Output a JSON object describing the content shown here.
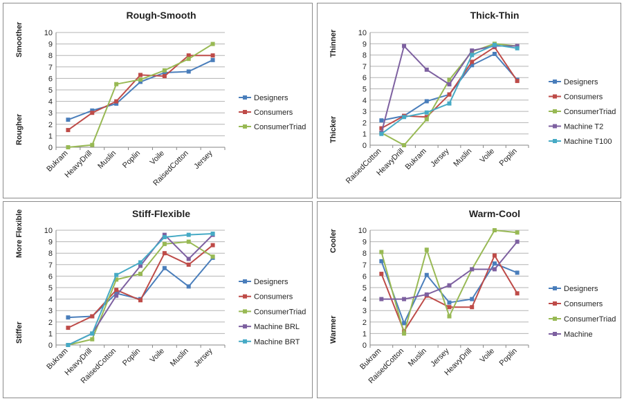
{
  "chart_data": [
    {
      "type": "line",
      "title": "Rough-Smooth",
      "ylim": [
        0,
        10
      ],
      "yticks": [
        "0",
        "1",
        "2",
        "3",
        "4",
        "5",
        "6",
        "7",
        "8",
        "9",
        "10"
      ],
      "ylabel_top": "Smoother",
      "ylabel_bottom": "Rougher",
      "grid": true,
      "legend_position": "right",
      "categories": [
        "Bukram",
        "HeavyDrill",
        "Muslin",
        "Poplin",
        "Voile",
        "RaisedCotton",
        "Jersey"
      ],
      "series": [
        {
          "name": "Designers",
          "color": "#4a7ebb",
          "values": [
            2.4,
            3.2,
            3.8,
            5.7,
            6.5,
            6.6,
            7.6
          ]
        },
        {
          "name": "Consumers",
          "color": "#be4b48",
          "values": [
            1.5,
            3.0,
            4.0,
            6.3,
            6.2,
            8.0,
            8.0
          ]
        },
        {
          "name": "ConsumerTriad",
          "color": "#98b954",
          "values": [
            0.0,
            0.2,
            5.5,
            5.9,
            6.7,
            7.7,
            9.0
          ]
        }
      ]
    },
    {
      "type": "line",
      "title": "Thick-Thin",
      "ylim": [
        0,
        10
      ],
      "yticks": [
        "0",
        "1",
        "2",
        "3",
        "4",
        "5",
        "6",
        "7",
        "8",
        "9",
        "10"
      ],
      "ylabel_top": "Thinner",
      "ylabel_bottom": "Thicker",
      "grid": true,
      "legend_position": "right",
      "categories": [
        "RaisedCotton",
        "HeavyDrill",
        "Bukram",
        "Jersey",
        "Muslin",
        "Voile",
        "Poplin"
      ],
      "series": [
        {
          "name": "Designers",
          "color": "#4a7ebb",
          "values": [
            2.2,
            2.6,
            3.9,
            4.5,
            7.1,
            8.1,
            5.8
          ]
        },
        {
          "name": "Consumers",
          "color": "#be4b48",
          "values": [
            1.5,
            2.6,
            2.5,
            4.5,
            7.4,
            8.7,
            5.7
          ]
        },
        {
          "name": "ConsumerTriad",
          "color": "#98b954",
          "values": [
            1.1,
            0.0,
            2.3,
            5.8,
            8.3,
            9.0,
            8.8
          ]
        },
        {
          "name": "Machine T2",
          "color": "#7d60a0",
          "values": [
            1.1,
            8.8,
            6.7,
            5.4,
            8.4,
            8.8,
            8.8
          ]
        },
        {
          "name": "Machine T100",
          "color": "#46aac5",
          "values": [
            1.0,
            2.5,
            2.9,
            3.7,
            8.0,
            8.9,
            8.6
          ]
        }
      ]
    },
    {
      "type": "line",
      "title": "Stiff-Flexible",
      "ylim": [
        0,
        10
      ],
      "yticks": [
        "0",
        "1",
        "2",
        "3",
        "4",
        "5",
        "6",
        "7",
        "8",
        "9",
        "10"
      ],
      "ylabel_top": "More Flexible",
      "ylabel_bottom": "Stiffer",
      "grid": true,
      "legend_position": "right",
      "categories": [
        "Bukram",
        "HeavyDrill",
        "RaisedCotton",
        "Poplin",
        "Voile",
        "Muslin",
        "Jersey"
      ],
      "series": [
        {
          "name": "Designers",
          "color": "#4a7ebb",
          "values": [
            2.4,
            2.5,
            4.5,
            4.0,
            6.7,
            5.1,
            7.6
          ]
        },
        {
          "name": "Consumers",
          "color": "#be4b48",
          "values": [
            1.5,
            2.5,
            4.8,
            3.9,
            8.0,
            7.0,
            8.7
          ]
        },
        {
          "name": "ConsumerTriad",
          "color": "#98b954",
          "values": [
            0.0,
            0.5,
            5.7,
            6.2,
            8.8,
            9.0,
            7.7
          ]
        },
        {
          "name": "Machine BRL",
          "color": "#7d60a0",
          "values": [
            0.0,
            1.0,
            4.3,
            6.9,
            9.6,
            7.5,
            9.6
          ]
        },
        {
          "name": "Machine BRT",
          "color": "#46aac5",
          "values": [
            0.0,
            1.0,
            6.1,
            7.2,
            9.4,
            9.6,
            9.7
          ]
        }
      ]
    },
    {
      "type": "line",
      "title": "Warm-Cool",
      "ylim": [
        0,
        10
      ],
      "yticks": [
        "0",
        "1",
        "2",
        "3",
        "4",
        "5",
        "6",
        "7",
        "8",
        "9",
        "10"
      ],
      "ylabel_top": "Cooler",
      "ylabel_bottom": "Warmer",
      "grid": true,
      "legend_position": "right",
      "categories": [
        "Bukram",
        "RaisedCotton",
        "Muslin",
        "Jersey",
        "HeavyDrill",
        "Voile",
        "Poplin"
      ],
      "series": [
        {
          "name": "Designers",
          "color": "#4a7ebb",
          "values": [
            7.3,
            1.9,
            6.1,
            3.7,
            4.0,
            7.1,
            6.3
          ]
        },
        {
          "name": "Consumers",
          "color": "#be4b48",
          "values": [
            6.2,
            1.2,
            4.3,
            3.3,
            3.3,
            7.8,
            4.5
          ]
        },
        {
          "name": "ConsumerTriad",
          "color": "#98b954",
          "values": [
            8.1,
            1.0,
            8.3,
            2.5,
            6.6,
            10.0,
            9.8
          ]
        },
        {
          "name": "Machine",
          "color": "#7d60a0",
          "values": [
            4.0,
            4.0,
            4.4,
            5.2,
            6.6,
            6.6,
            9.0
          ]
        }
      ]
    }
  ]
}
